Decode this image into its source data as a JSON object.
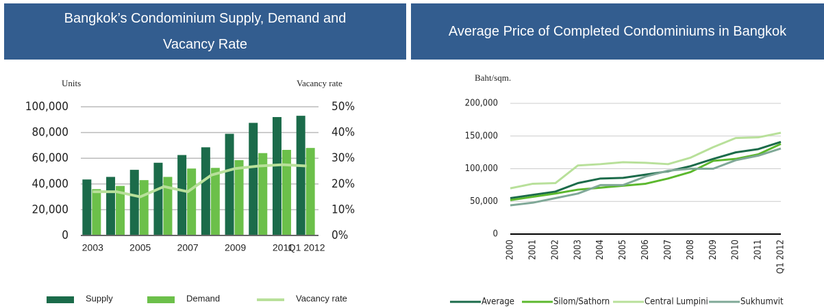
{
  "chart_data": [
    {
      "type": "bar",
      "title": "Bangkok’s Condominium Supply, Demand and Vacancy Rate",
      "y_label": "Units",
      "y2_label": "Vacancy rate",
      "categories": [
        "2003",
        null,
        "2005",
        null,
        "2007",
        null,
        "2009",
        null,
        "2011",
        "Q1 2012"
      ],
      "series": [
        {
          "name": "Supply",
          "color": "#1b6b4a",
          "values": [
            43500,
            45500,
            51000,
            56500,
            62500,
            68500,
            79000,
            87500,
            92000,
            93000
          ]
        },
        {
          "name": "Demand",
          "color": "#6cc04a",
          "values": [
            36000,
            38500,
            43000,
            45500,
            52000,
            52500,
            58500,
            64000,
            66500,
            68000
          ]
        },
        {
          "name": "Vacancy rate",
          "color": "#b8e09a",
          "type": "line",
          "axis": "y2",
          "values": [
            17,
            17,
            15,
            19,
            17,
            23.5,
            26,
            27,
            27.5,
            27
          ]
        }
      ],
      "ylim": [
        0,
        100000
      ],
      "yticks": [
        0,
        {
          "value": 20000,
          "label": "20,000"
        },
        {
          "value": 40000,
          "label": "40,000"
        },
        {
          "value": 60000,
          "label": "60,000"
        },
        {
          "value": 80000,
          "label": "80,000"
        },
        {
          "value": 100000,
          "label": "100,000"
        }
      ],
      "y2lim": [
        0,
        50
      ],
      "y2ticks": [
        {
          "value": 0,
          "label": "0%"
        },
        {
          "value": 10,
          "label": "10%"
        },
        {
          "value": 20,
          "label": "20%"
        },
        {
          "value": 30,
          "label": "30%"
        },
        {
          "value": 40,
          "label": "40%"
        },
        {
          "value": 50,
          "label": "50%"
        }
      ],
      "grid": true
    },
    {
      "type": "line",
      "title": "Average Price of Completed Condominiums in Bangkok",
      "y_label": "Baht/sqm.",
      "categories": [
        "2000",
        "2001",
        "2002",
        "2003",
        "2004",
        "2005",
        "2006",
        "2007",
        "2008",
        "2009",
        "2010",
        "2011",
        "Q1 2012"
      ],
      "series": [
        {
          "name": "Average",
          "color": "#1b6b4a",
          "values": [
            55000,
            60000,
            65000,
            78000,
            85000,
            86000,
            91000,
            96000,
            104000,
            115000,
            125000,
            130000,
            141000
          ]
        },
        {
          "name": "Silom/Sathorn",
          "color": "#5cb82e",
          "values": [
            52000,
            57000,
            62000,
            68000,
            71000,
            74000,
            77000,
            85000,
            95000,
            112000,
            115000,
            122000,
            138000
          ]
        },
        {
          "name": "Central Lumpini",
          "color": "#b8e09a",
          "values": [
            70000,
            77000,
            78000,
            105000,
            107000,
            110000,
            109000,
            107000,
            117000,
            133000,
            147000,
            148000,
            155000
          ]
        },
        {
          "name": "Sukhumvit",
          "color": "#7fa897",
          "values": [
            44000,
            48000,
            55000,
            62000,
            75000,
            75000,
            88000,
            97000,
            100000,
            100000,
            113000,
            120000,
            131000
          ]
        }
      ],
      "ylim": [
        0,
        200000
      ],
      "yticks": [
        0,
        {
          "value": 50000,
          "label": "50,000"
        },
        {
          "value": 100000,
          "label": "100,000"
        },
        {
          "value": 150000,
          "label": "150,000"
        },
        {
          "value": 200000,
          "label": "200,000"
        }
      ],
      "grid": true
    }
  ]
}
